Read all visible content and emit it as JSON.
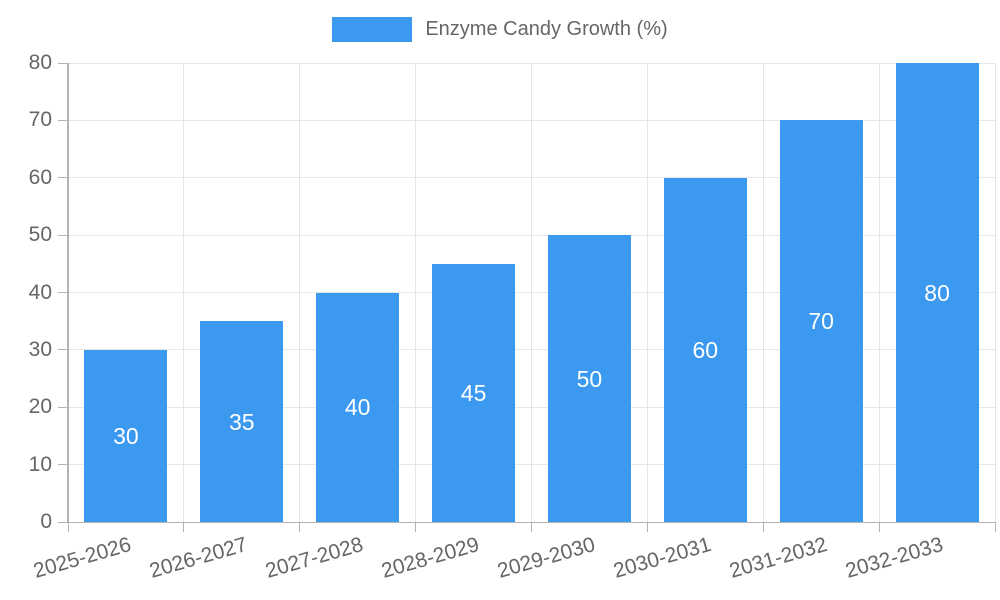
{
  "chart_data": {
    "type": "bar",
    "title": "",
    "legend": {
      "label": "Enzyme Candy Growth (%)",
      "position": "top-center"
    },
    "categories": [
      "2025-2026",
      "2026-2027",
      "2027-2028",
      "2028-2029",
      "2029-2030",
      "2030-2031",
      "2031-2032",
      "2032-2033"
    ],
    "values": [
      30,
      35,
      40,
      45,
      50,
      60,
      70,
      80
    ],
    "value_labels": [
      "30",
      "35",
      "40",
      "45",
      "50",
      "60",
      "70",
      "80"
    ],
    "value_label_position": "center-of-bar",
    "xlabel": "",
    "ylabel": "",
    "ylim": [
      0,
      80
    ],
    "yticks": [
      0,
      10,
      20,
      30,
      40,
      50,
      60,
      70,
      80
    ],
    "grid": true,
    "x_label_rotation_deg": -16,
    "colors": {
      "bar": "#3B99F0",
      "bar_value_label": "#FFFFFF",
      "axis_text": "#666666",
      "grid_line": "#E6E6E6",
      "axis_line": "#B3B3B3",
      "background": "#FFFFFF"
    }
  }
}
